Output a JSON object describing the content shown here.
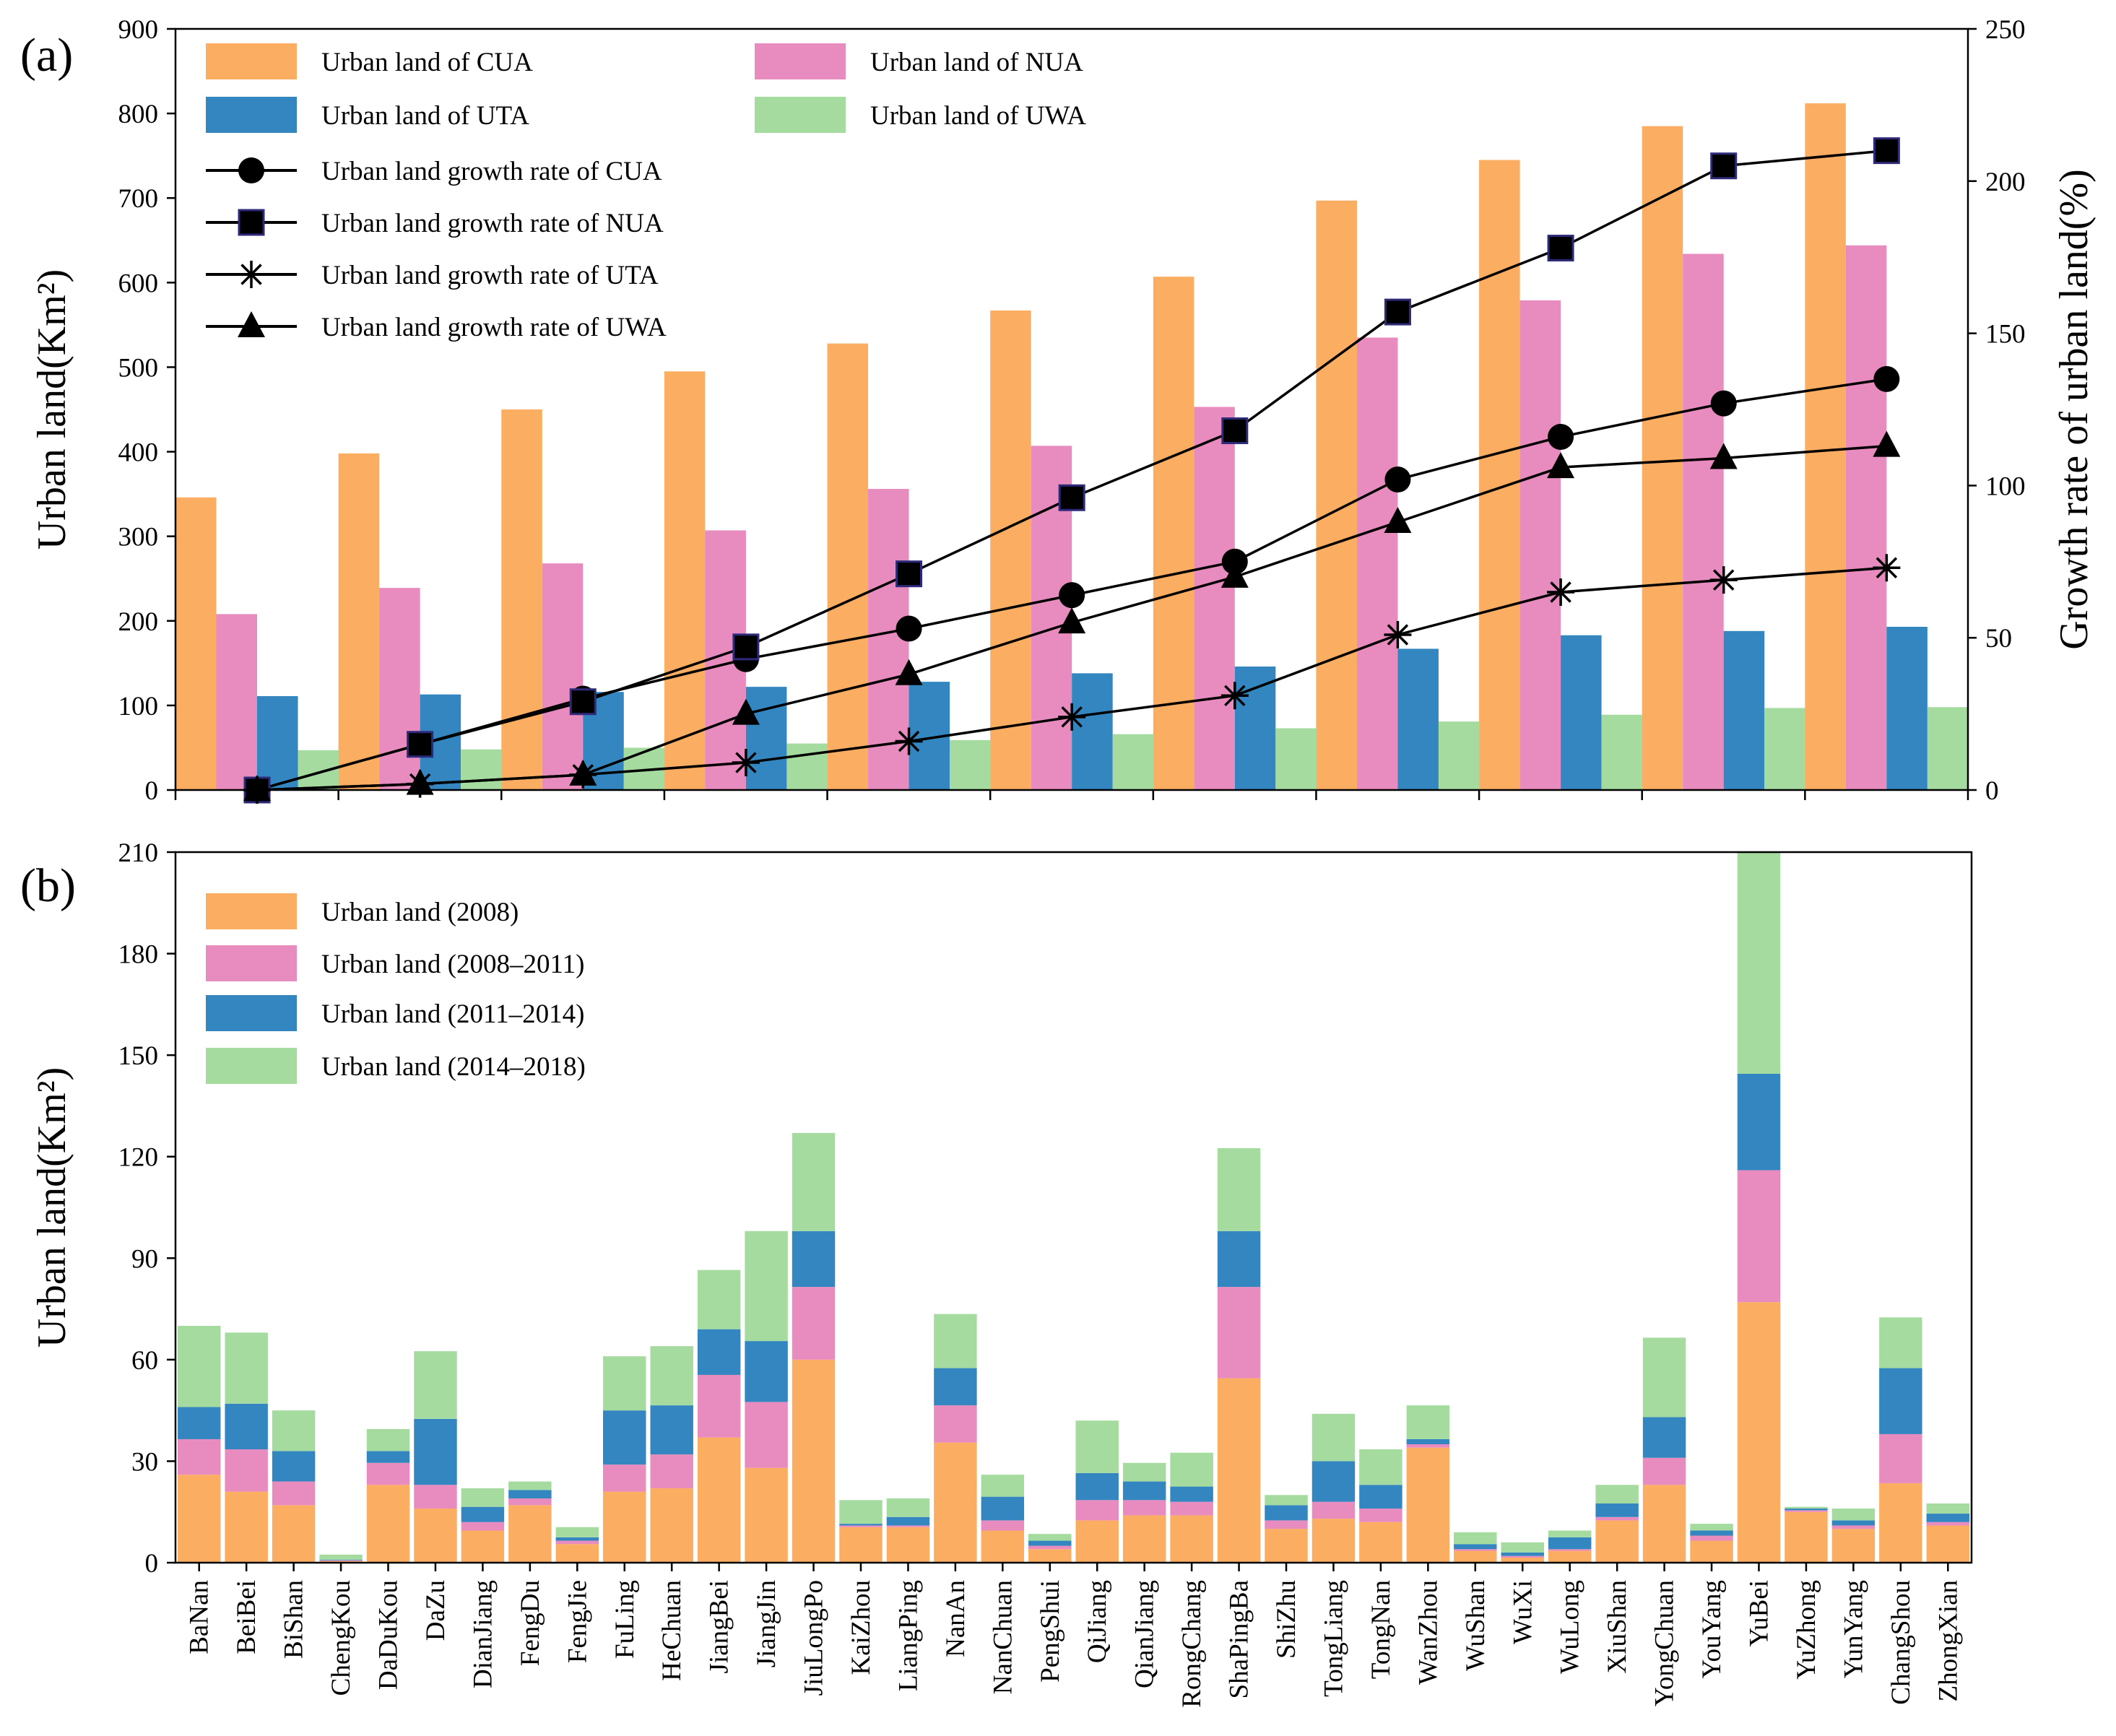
{
  "chart_data": [
    {
      "panel": "(a)",
      "type": "bar+line",
      "ylabel": "Urban land(Km²)",
      "y2label": "Growth rate of urban land(%)",
      "ylim": [
        0,
        900
      ],
      "yticks": [
        0,
        100,
        200,
        300,
        400,
        500,
        600,
        700,
        800,
        900
      ],
      "y2lim": [
        0,
        250
      ],
      "y2ticks": [
        0,
        50,
        100,
        150,
        200,
        250
      ],
      "grid": false,
      "legend_position": "top-left",
      "n_groups": 11,
      "bar_series": [
        {
          "name": "Urban land of CUA",
          "color": "#fbad62",
          "values": [
            346,
            398,
            450,
            495,
            528,
            567,
            607,
            697,
            745,
            785,
            812
          ]
        },
        {
          "name": "Urban land of NUA",
          "color": "#e88bbf",
          "values": [
            208,
            239,
            268,
            307,
            356,
            407,
            453,
            535,
            579,
            634,
            644
          ]
        },
        {
          "name": "Urban land of UTA",
          "color": "#3386bf",
          "values": [
            111,
            113,
            116,
            122,
            128,
            138,
            146,
            167,
            183,
            188,
            193
          ]
        },
        {
          "name": "Urban land of UWA",
          "color": "#a6dba0",
          "values": [
            47,
            48,
            50,
            55,
            59,
            66,
            73,
            81,
            89,
            97,
            98
          ]
        }
      ],
      "line_series": [
        {
          "name": "Urban land growth rate of CUA",
          "marker": "circle",
          "values": [
            0,
            15,
            30,
            43,
            53,
            64,
            75,
            102,
            116,
            127,
            135
          ]
        },
        {
          "name": "Urban land growth rate of NUA",
          "marker": "square",
          "values": [
            0,
            15,
            29,
            47,
            71,
            96,
            118,
            157,
            178,
            205,
            210
          ]
        },
        {
          "name": "Urban land growth rate of UTA",
          "marker": "star",
          "values": [
            0,
            2,
            5,
            9,
            16,
            24,
            31,
            51,
            65,
            69,
            73
          ]
        },
        {
          "name": "Urban land growth rate of UWA",
          "marker": "triangle",
          "values": [
            0,
            2,
            5,
            25,
            38,
            55,
            70,
            88,
            106,
            109,
            113
          ]
        }
      ]
    },
    {
      "panel": "(b)",
      "type": "bar",
      "stacked": true,
      "ylabel": "Urban land(Km²)",
      "ylim": [
        0,
        210
      ],
      "yticks": [
        0,
        30,
        60,
        90,
        120,
        150,
        180,
        210
      ],
      "grid": false,
      "legend_position": "top-left",
      "categories": [
        "BaNan",
        "BeiBei",
        "BiShan",
        "ChengKou",
        "DaDuKou",
        "DaZu",
        "DianJiang",
        "FengDu",
        "FengJie",
        "FuLing",
        "HeChuan",
        "JiangBei",
        "JiangJin",
        "JiuLongPo",
        "KaiZhou",
        "LiangPing",
        "NanAn",
        "NanChuan",
        "PengShui",
        "QiJiang",
        "QianJiang",
        "RongChang",
        "ShaPingBa",
        "ShiZhu",
        "TongLiang",
        "TongNan",
        "WanZhou",
        "WuShan",
        "WuXi",
        "WuLong",
        "XiuShan",
        "YongChuan",
        "YouYang",
        "YuBei",
        "YuZhong",
        "YunYang",
        "ChangShou",
        "ZhongXian"
      ],
      "series": [
        {
          "name": "Urban land (2008)",
          "color": "#fbad62",
          "values": [
            26,
            21,
            17,
            0.5,
            23,
            16,
            9.5,
            17,
            5.5,
            21,
            22,
            37,
            28,
            60,
            10.5,
            10.5,
            35.5,
            9.5,
            4,
            12.5,
            14,
            14,
            54.5,
            10,
            13,
            12,
            34,
            3.5,
            1.5,
            3.5,
            12.5,
            23,
            6.5,
            77,
            15,
            10,
            23.5,
            11
          ]
        },
        {
          "name": "Urban land (2008–2011)",
          "color": "#e88bbf",
          "values": [
            10.5,
            12.5,
            7,
            0.2,
            6.5,
            7,
            2.5,
            2,
            1,
            8,
            10,
            18.5,
            19.5,
            21.5,
            0.5,
            0.5,
            11,
            3,
            1,
            6,
            4.5,
            4,
            27,
            2.5,
            5,
            4,
            1,
            0.5,
            0.5,
            0.5,
            1,
            8,
            1.5,
            39,
            0.5,
            1,
            14.5,
            1
          ]
        },
        {
          "name": "Urban land (2011–2014)",
          "color": "#3386bf",
          "values": [
            9.5,
            13.5,
            9,
            0.2,
            3.5,
            19.5,
            4.5,
            2.5,
            1,
            16,
            14.5,
            13.5,
            18,
            16.5,
            0.5,
            2.5,
            11,
            7,
            1.5,
            8,
            5.5,
            4.5,
            16.5,
            4.5,
            12,
            7,
            1.5,
            1.5,
            1,
            3.5,
            4,
            12,
            1.5,
            28.5,
            0.5,
            1.5,
            19.5,
            2.5
          ]
        },
        {
          "name": "Urban land (2014–2018)",
          "color": "#a6dba0",
          "values": [
            24,
            21,
            12,
            1.5,
            6.5,
            20,
            5.5,
            2.5,
            3,
            16,
            17.5,
            17.5,
            32.5,
            29,
            7,
            5.5,
            16,
            6.5,
            2,
            15.5,
            5.5,
            10,
            24.5,
            3,
            14,
            10.5,
            10,
            3.5,
            3,
            2,
            5.5,
            23.5,
            2,
            66.5,
            0.5,
            3.5,
            15,
            3
          ]
        }
      ]
    }
  ]
}
